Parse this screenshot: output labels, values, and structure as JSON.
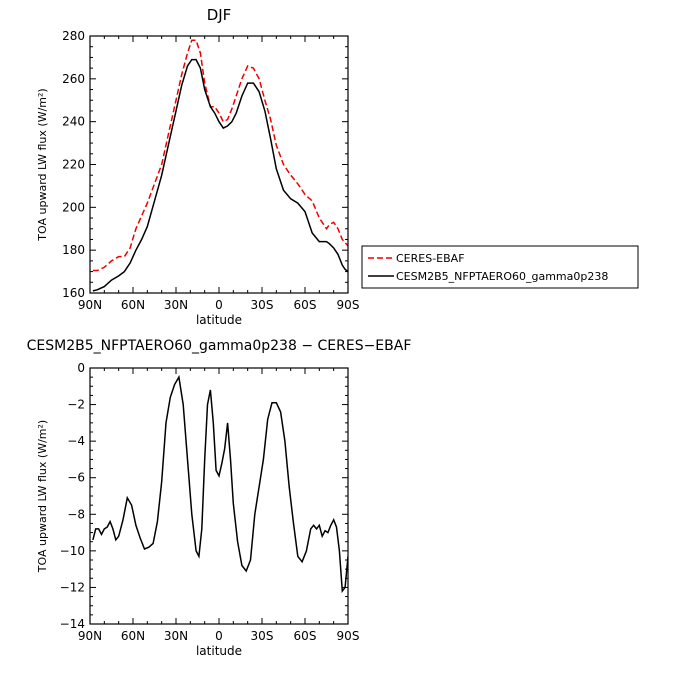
{
  "chart_data": [
    {
      "type": "line",
      "title": "DJF",
      "xlabel": "latitude",
      "ylabel": "TOA upward LW flux (W/m²)",
      "xlim": [
        90,
        -90
      ],
      "ylim": [
        160,
        280
      ],
      "xtick_values": [
        90,
        60,
        30,
        0,
        -30,
        -60,
        -90
      ],
      "xtick_labels": [
        "90N",
        "60N",
        "30N",
        "0",
        "30S",
        "60S",
        "90S"
      ],
      "ytick_values": [
        160,
        180,
        200,
        220,
        240,
        260,
        280
      ],
      "ytick_labels": [
        "160",
        "180",
        "200",
        "220",
        "240",
        "260",
        "280"
      ],
      "legend": [
        "CERES-EBAF",
        "CESM2B5_NFPTAERO60_gamma0p238"
      ],
      "series": [
        {
          "name": "CERES-EBAF",
          "color": "#ee0000",
          "dash": "dashed",
          "x": [
            88,
            85,
            80,
            75,
            70,
            66,
            62,
            58,
            54,
            50,
            45,
            40,
            35,
            30,
            26,
            22,
            19,
            16,
            13,
            10,
            6,
            3,
            0,
            -3,
            -6,
            -9,
            -12,
            -16,
            -20,
            -24,
            -28,
            -32,
            -36,
            -40,
            -45,
            -50,
            -55,
            -60,
            -65,
            -70,
            -75,
            -77,
            -80,
            -83,
            -86,
            -90
          ],
          "y": [
            170.5,
            170.5,
            172,
            175,
            177,
            177,
            181,
            190,
            196,
            202,
            211,
            220,
            235,
            250,
            262,
            272,
            278,
            278,
            272,
            258,
            247,
            247,
            244,
            240,
            241,
            246,
            252,
            260,
            266,
            265,
            260,
            250,
            241,
            229,
            220,
            215,
            211,
            206,
            203,
            195,
            190,
            192,
            193,
            190,
            185,
            182
          ]
        },
        {
          "name": "CESM2B5_NFPTAERO60_gamma0p238",
          "color": "#000000",
          "dash": "solid",
          "x": [
            88,
            85,
            80,
            75,
            70,
            66,
            62,
            58,
            54,
            50,
            45,
            40,
            35,
            30,
            26,
            22,
            19,
            16,
            13,
            10,
            6,
            3,
            0,
            -3,
            -6,
            -9,
            -12,
            -16,
            -20,
            -24,
            -28,
            -32,
            -36,
            -40,
            -45,
            -50,
            -55,
            -60,
            -65,
            -70,
            -75,
            -77,
            -80,
            -83,
            -86,
            -88,
            -90
          ],
          "y": [
            161,
            161.5,
            163,
            166,
            168,
            170,
            174,
            180,
            185,
            191,
            203,
            215,
            230,
            245,
            257,
            266,
            269,
            269,
            265,
            255,
            247,
            244,
            240,
            237,
            238,
            240,
            244,
            252,
            258,
            258,
            254,
            245,
            232,
            218,
            208,
            204,
            202,
            198,
            188,
            184,
            184,
            183,
            181,
            178,
            173,
            171,
            170
          ]
        }
      ]
    },
    {
      "type": "line",
      "title": "CESM2B5_NFPTAERO60_gamma0p238 − CERES−EBAF",
      "xlabel": "latitude",
      "ylabel": "TOA upward LW flux (W/m²)",
      "xlim": [
        90,
        -90
      ],
      "ylim": [
        -14,
        0
      ],
      "xtick_values": [
        90,
        60,
        30,
        0,
        -30,
        -60,
        -90
      ],
      "xtick_labels": [
        "90N",
        "60N",
        "30N",
        "0",
        "30S",
        "60S",
        "90S"
      ],
      "ytick_values": [
        0,
        -2,
        -4,
        -6,
        -8,
        -10,
        -12,
        -14
      ],
      "ytick_labels": [
        "0",
        "−2",
        "−4",
        "−6",
        "−8",
        "−10",
        "−12",
        "−14"
      ],
      "series": [
        {
          "name": "CESM2B5_NFPTAERO60_gamma0p238 − CERES−EBAF",
          "color": "#000000",
          "dash": "solid",
          "x": [
            88,
            86,
            84,
            82,
            80,
            78,
            76,
            74,
            72,
            70,
            67,
            64,
            61,
            58,
            55,
            52,
            49,
            46,
            43,
            40,
            37,
            34,
            31,
            28,
            25,
            22,
            19,
            16,
            14,
            12,
            10,
            8,
            6,
            4,
            2,
            0,
            -2,
            -4,
            -6,
            -8,
            -10,
            -13,
            -16,
            -19,
            -22,
            -25,
            -28,
            -31,
            -34,
            -37,
            -40,
            -43,
            -46,
            -49,
            -52,
            -55,
            -58,
            -61,
            -64,
            -66,
            -68,
            -70,
            -72,
            -74,
            -76,
            -78,
            -80,
            -82,
            -84,
            -86,
            -88,
            -90
          ],
          "y": [
            -9.4,
            -8.8,
            -8.8,
            -9.1,
            -8.8,
            -8.7,
            -8.4,
            -8.8,
            -9.4,
            -9.2,
            -8.3,
            -7.1,
            -7.5,
            -8.6,
            -9.3,
            -9.9,
            -9.8,
            -9.6,
            -8.4,
            -6.2,
            -3.0,
            -1.6,
            -0.9,
            -0.5,
            -2.0,
            -5.0,
            -8.0,
            -10.0,
            -10.3,
            -8.8,
            -5.0,
            -2.0,
            -1.2,
            -3.0,
            -5.6,
            -5.9,
            -5.2,
            -4.4,
            -3.0,
            -5.0,
            -7.4,
            -9.5,
            -10.8,
            -11.1,
            -10.5,
            -8.0,
            -6.5,
            -5.0,
            -2.8,
            -1.9,
            -1.9,
            -2.4,
            -4.0,
            -6.5,
            -8.5,
            -10.3,
            -10.6,
            -10.0,
            -8.8,
            -8.6,
            -8.8,
            -8.6,
            -9.2,
            -8.9,
            -9.0,
            -8.6,
            -8.3,
            -8.7,
            -10.0,
            -12.2,
            -12.0,
            -10.3
          ]
        }
      ]
    }
  ]
}
